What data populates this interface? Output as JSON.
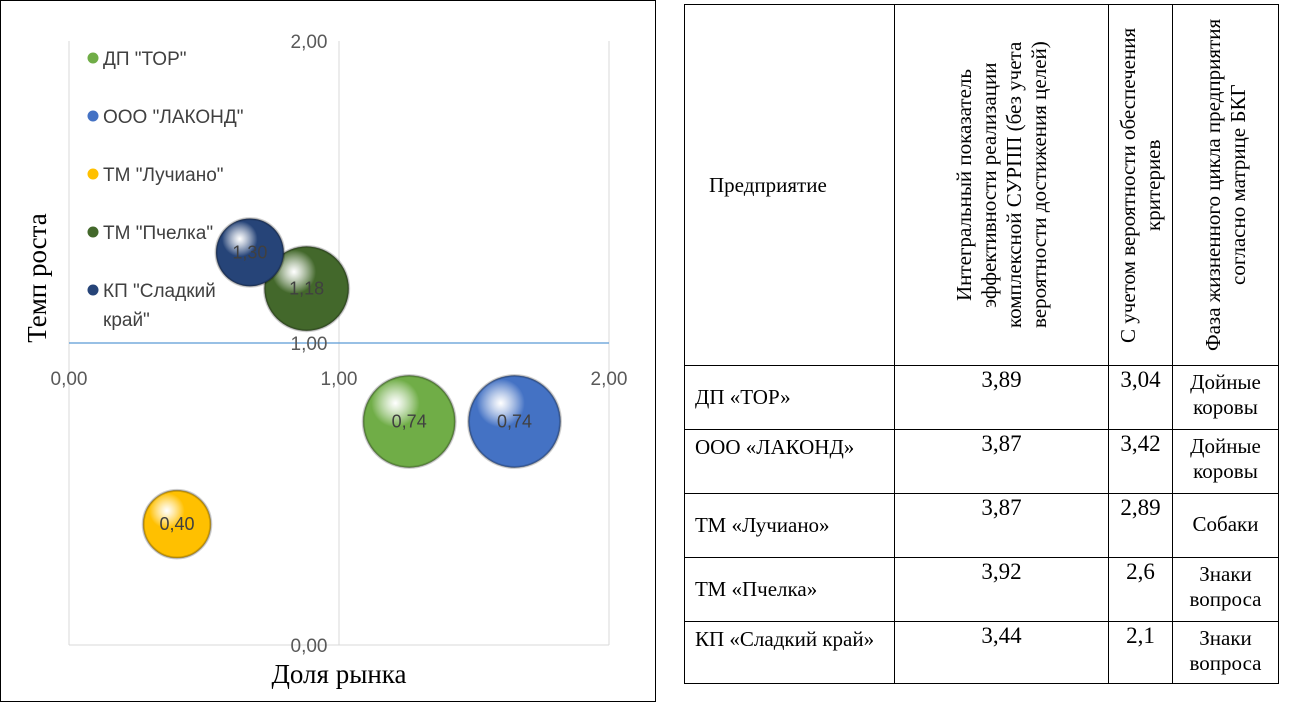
{
  "chart_data": {
    "type": "bubble",
    "xlabel": "Доля рынка",
    "ylabel": "Темп роста",
    "xlim": [
      0,
      2
    ],
    "ylim": [
      0,
      2
    ],
    "x_ticks": [
      "0,00",
      "1,00",
      "2,00"
    ],
    "y_ticks": [
      "0,00",
      "1,00",
      "2,00"
    ],
    "legend_position": "top-left",
    "series": [
      {
        "name": "ДП \"ТОР\"",
        "color": "#70ad47",
        "x": 1.26,
        "y": 0.74,
        "size": 0.74,
        "label": "0,74"
      },
      {
        "name": "ООО \"ЛАКОНД\"",
        "color": "#4472c4",
        "x": 1.65,
        "y": 0.74,
        "size": 0.74,
        "label": "0,74"
      },
      {
        "name": "ТМ \"Лучиано\"",
        "color": "#ffc000",
        "x": 0.4,
        "y": 0.4,
        "size": 0.4,
        "label": "0,40"
      },
      {
        "name": "ТМ \"Пчелка\"",
        "color": "#43682b",
        "x": 0.88,
        "y": 1.18,
        "size": 0.62,
        "label": "1,18"
      },
      {
        "name": "КП \"Сладкий край\"",
        "color": "#264478",
        "x": 0.67,
        "y": 1.3,
        "size": 0.4,
        "label": "1,30"
      }
    ]
  },
  "table": {
    "headers": {
      "company": "Предприятие",
      "integral": "Интегральный показатель эффективности реализации комплексной СУРПП (без учета вероятности достижения целей)",
      "probability": "С учетом вероятности обеспечения критериев",
      "phase": "Фаза жизненного цикла предприятия согласно матрице БКГ"
    },
    "rows": [
      {
        "company": "ДП «ТОР»",
        "integral": "3,89",
        "probability": "3,04",
        "phase": "Дойные коровы"
      },
      {
        "company": "ООО «ЛАКОНД»",
        "integral": "3,87",
        "probability": "3,42",
        "phase": "Дойные коровы"
      },
      {
        "company": "ТМ «Лучиано»",
        "integral": "3,87",
        "probability": "2,89",
        "phase": "Собаки"
      },
      {
        "company": "ТМ «Пчелка»",
        "integral": "3,92",
        "probability": "2,6",
        "phase": "Знаки вопроса"
      },
      {
        "company": "КП «Сладкий край»",
        "integral": "3,44",
        "probability": "2,1",
        "phase": "Знаки вопроса"
      }
    ]
  }
}
